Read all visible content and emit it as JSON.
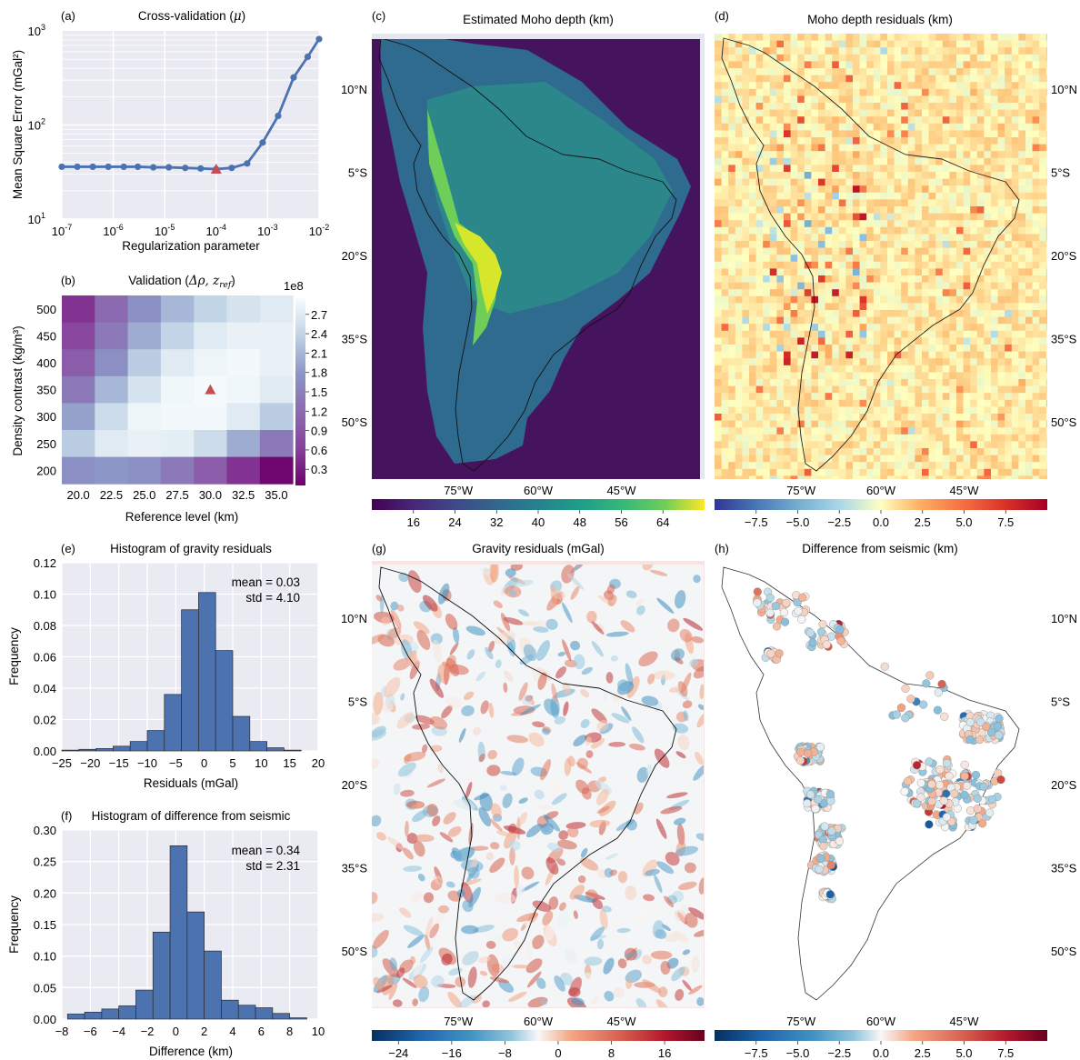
{
  "panel_a": {
    "letter": "(a)",
    "title_prefix": "Cross-validation (",
    "title_symbol": "μ",
    "title_suffix": ")",
    "chart_data": {
      "type": "line",
      "title": "Cross-validation (μ)",
      "xlabel": "Regularization parameter",
      "ylabel": "Mean Square Error (mGal²)",
      "xscale": "log",
      "yscale": "log",
      "xlim": [
        1e-07,
        0.01
      ],
      "ylim": [
        10,
        1000
      ],
      "x_ticks": [
        {
          "base": "10",
          "exp": "-7"
        },
        {
          "base": "10",
          "exp": "-6"
        },
        {
          "base": "10",
          "exp": "-5"
        },
        {
          "base": "10",
          "exp": "-4"
        },
        {
          "base": "10",
          "exp": "-3"
        },
        {
          "base": "10",
          "exp": "-2"
        }
      ],
      "y_ticks": [
        {
          "base": "10",
          "exp": "1"
        },
        {
          "base": "10",
          "exp": "2"
        },
        {
          "base": "10",
          "exp": "3"
        }
      ],
      "x": [
        1e-07,
        2e-07,
        4e-07,
        8e-07,
        1.6e-06,
        3e-06,
        6e-06,
        1.2e-05,
        2.5e-05,
        5e-05,
        0.0001,
        0.0002,
        0.0004,
        0.0008,
        0.0016,
        0.0032,
        0.006,
        0.01
      ],
      "y": [
        36,
        36,
        36,
        36,
        36,
        36,
        35.5,
        35.5,
        35,
        34.5,
        34,
        35,
        39,
        65,
        125,
        320,
        530,
        820
      ],
      "marker": {
        "x": 0.0001,
        "y": 34
      },
      "color": "#4c72b0",
      "marker_color": "#c44e52",
      "grid": true
    }
  },
  "panel_b": {
    "letter": "(b)",
    "title_prefix": "Validation (",
    "title_d": "Δρ, ",
    "title_z": "z",
    "title_sub": "ref",
    "title_suffix": ")",
    "chart_data": {
      "type": "heatmap",
      "title": "Validation (Δρ, z_ref)",
      "xlabel": "Reference level (km)",
      "ylabel": "Density contrast (kg/m³)",
      "x_categories": [
        "20.0",
        "22.5",
        "25.0",
        "27.5",
        "30.0",
        "32.5",
        "35.0"
      ],
      "y_categories": [
        "500",
        "450",
        "400",
        "350",
        "300",
        "250",
        "200"
      ],
      "values": [
        [
          2.5,
          1.8,
          1.3,
          0.9,
          0.6,
          0.4,
          0.3
        ],
        [
          2.3,
          1.6,
          1.0,
          0.6,
          0.3,
          0.2,
          0.2
        ],
        [
          2.0,
          1.3,
          0.7,
          0.3,
          0.15,
          0.1,
          0.2
        ],
        [
          1.6,
          0.9,
          0.4,
          0.12,
          0.08,
          0.12,
          0.3
        ],
        [
          1.1,
          0.5,
          0.15,
          0.1,
          0.1,
          0.3,
          0.7
        ],
        [
          0.7,
          0.3,
          0.2,
          0.25,
          0.5,
          1.0,
          1.6
        ],
        [
          1.3,
          1.2,
          1.3,
          1.6,
          2.0,
          2.5,
          2.9
        ]
      ],
      "marker": {
        "x": "30.0",
        "y": "350"
      },
      "colorbar_ticks": [
        "0.3",
        "0.6",
        "0.9",
        "1.2",
        "1.5",
        "1.8",
        "2.1",
        "2.4",
        "2.7"
      ],
      "colorbar_range": [
        0.05,
        2.95
      ],
      "colorbar_exponent": "1e8"
    }
  },
  "panel_c": {
    "letter": "(c)",
    "title": "Estimated Moho depth (km)",
    "colorbar_ticks": [
      "16",
      "24",
      "32",
      "40",
      "48",
      "56",
      "64"
    ],
    "colorbar_range": [
      8,
      72
    ],
    "lon_labels": [
      "75°W",
      "60°W",
      "45°W"
    ],
    "lat_labels": [
      "10°N",
      "5°S",
      "20°S",
      "35°S",
      "50°S"
    ]
  },
  "panel_d": {
    "letter": "(d)",
    "title": "Moho depth residuals (km)",
    "colorbar_ticks": [
      "−7.5",
      "−5.0",
      "−2.5",
      "0.0",
      "2.5",
      "5.0",
      "7.5"
    ],
    "colorbar_range": [
      -10,
      10
    ],
    "lon_labels": [
      "75°W",
      "60°W",
      "45°W"
    ],
    "lat_labels": [
      "10°N",
      "5°S",
      "20°S",
      "35°S",
      "50°S"
    ]
  },
  "panel_e": {
    "letter": "(e)",
    "chart_data": {
      "type": "bar",
      "title": "Histogram of gravity residuals",
      "xlabel": "Residuals (mGal)",
      "ylabel": "Frequency",
      "xlim": [
        -25,
        20
      ],
      "ylim": [
        0,
        0.12
      ],
      "x_ticks": [
        "−25",
        "−20",
        "−15",
        "−10",
        "−5",
        "0",
        "5",
        "10",
        "15",
        "20"
      ],
      "x_tick_values": [
        -25,
        -20,
        -15,
        -10,
        -5,
        0,
        5,
        10,
        15,
        20
      ],
      "y_ticks": [
        "0.00",
        "0.02",
        "0.04",
        "0.06",
        "0.08",
        "0.10",
        "0.12"
      ],
      "y_tick_values": [
        0,
        0.02,
        0.04,
        0.06,
        0.08,
        0.1,
        0.12
      ],
      "bin_edges": [
        -25,
        -22,
        -19,
        -16,
        -13,
        -10,
        -7,
        -4,
        -1,
        2,
        5,
        8,
        11,
        14,
        17
      ],
      "values": [
        0.0005,
        0.001,
        0.0015,
        0.003,
        0.006,
        0.013,
        0.036,
        0.09,
        0.101,
        0.064,
        0.022,
        0.006,
        0.002,
        0.0005
      ],
      "annotation_mean": "mean = 0.03",
      "annotation_std": "std = 4.10",
      "color": "#4c72b0"
    }
  },
  "panel_f": {
    "letter": "(f)",
    "chart_data": {
      "type": "bar",
      "title": "Histogram of difference from seismic",
      "xlabel": "Difference (km)",
      "ylabel": "Frequency",
      "xlim": [
        -8,
        10
      ],
      "ylim": [
        0,
        0.3
      ],
      "x_ticks": [
        "−8",
        "−6",
        "−4",
        "−2",
        "0",
        "2",
        "4",
        "6",
        "8",
        "10"
      ],
      "x_tick_values": [
        -8,
        -6,
        -4,
        -2,
        0,
        2,
        4,
        6,
        8,
        10
      ],
      "y_ticks": [
        "0.00",
        "0.05",
        "0.10",
        "0.15",
        "0.20",
        "0.25",
        "0.30"
      ],
      "y_tick_values": [
        0,
        0.05,
        0.1,
        0.15,
        0.2,
        0.25,
        0.3
      ],
      "bin_edges": [
        -7.6,
        -6.4,
        -5.2,
        -4.0,
        -2.8,
        -1.6,
        -0.4,
        0.8,
        2.0,
        3.2,
        4.4,
        5.6,
        6.8,
        8.0,
        9.2
      ],
      "values": [
        0.008,
        0.011,
        0.016,
        0.021,
        0.046,
        0.138,
        0.275,
        0.17,
        0.108,
        0.03,
        0.022,
        0.018,
        0.009,
        0.002
      ],
      "annotation_mean": "mean = 0.34",
      "annotation_std": "std = 2.31",
      "color": "#4c72b0"
    }
  },
  "panel_g": {
    "letter": "(g)",
    "title": "Gravity residuals (mGal)",
    "colorbar_ticks": [
      "−24",
      "−16",
      "−8",
      "0",
      "8",
      "16"
    ],
    "colorbar_range": [
      -28,
      22
    ],
    "lon_labels": [
      "75°W",
      "60°W",
      "45°W"
    ],
    "lat_labels": [
      "10°N",
      "5°S",
      "20°S",
      "35°S",
      "50°S"
    ]
  },
  "panel_h": {
    "letter": "(h)",
    "title": "Difference from seismic (km)",
    "colorbar_ticks": [
      "−7.5",
      "−5.0",
      "−2.5",
      "0.0",
      "2.5",
      "5.0",
      "7.5"
    ],
    "colorbar_range": [
      -10,
      10
    ],
    "lon_labels": [
      "75°W",
      "60°W",
      "45°W"
    ],
    "lat_labels": [
      "10°N",
      "5°S",
      "20°S",
      "35°S",
      "50°S"
    ]
  },
  "colors": {
    "axes_bg": "#eaeaf2",
    "grid": "#ffffff",
    "bar": "#4c72b0",
    "line": "#4c72b0",
    "marker": "#c44e52"
  }
}
